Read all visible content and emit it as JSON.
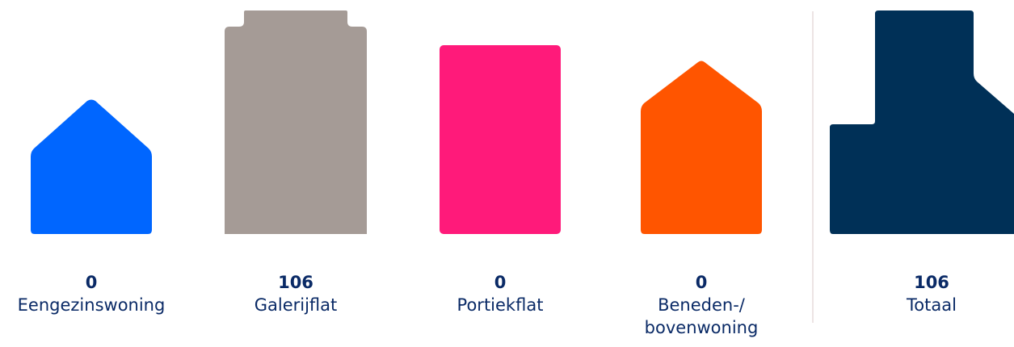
{
  "housing_types": [
    {
      "count": "0",
      "label": "Eengezinswoning",
      "icon": "single-family-house-icon",
      "color": "#0066ff"
    },
    {
      "count": "106",
      "label": "Galerijflat",
      "icon": "gallery-flat-icon",
      "color": "#a59b96"
    },
    {
      "count": "0",
      "label": "Portiekflat",
      "icon": "porch-flat-icon",
      "color": "#ff1a7a"
    },
    {
      "count": "0",
      "label": "Beneden-/\nbovenwoning",
      "icon": "upper-lower-house-icon",
      "color": "#ff5500"
    }
  ],
  "total": {
    "count": "106",
    "label": "Totaal",
    "icon": "total-buildings-icon",
    "color": "#003057"
  }
}
